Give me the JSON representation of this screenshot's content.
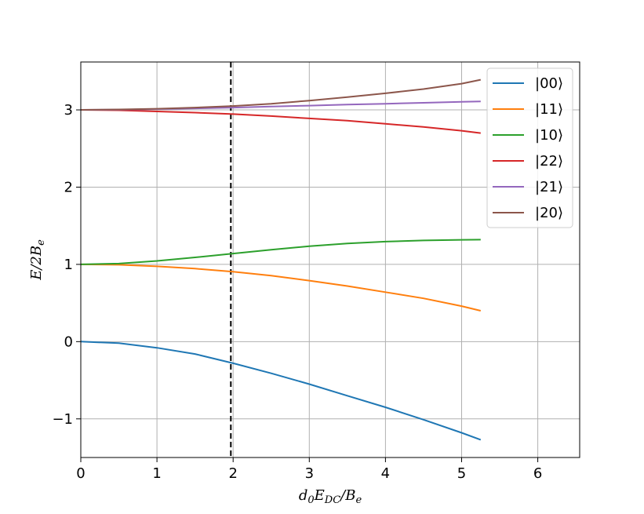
{
  "chart_data": {
    "type": "line",
    "xlabel": "d0EDC/Be",
    "ylabel": "E/2Be",
    "xlim": [
      0,
      6.55
    ],
    "ylim": [
      -1.5,
      3.62
    ],
    "xticks": [
      0,
      1,
      2,
      3,
      4,
      5,
      6
    ],
    "yticks": [
      -1,
      0,
      1,
      2,
      3
    ],
    "xtick_labels": [
      "0",
      "1",
      "2",
      "3",
      "4",
      "5",
      "6"
    ],
    "ytick_labels": [
      "−1",
      "0",
      "1",
      "2",
      "3"
    ],
    "grid": true,
    "legend": "top-right",
    "vline": {
      "x": 1.97,
      "style": "dashed",
      "color": "#000000"
    },
    "x": [
      0,
      0.5,
      1,
      1.5,
      2,
      2.5,
      3,
      3.5,
      4,
      4.5,
      5,
      5.25
    ],
    "series": [
      {
        "name": "|00⟩",
        "color": "#1f77b4",
        "values": [
          0.0,
          -0.02,
          -0.08,
          -0.16,
          -0.28,
          -0.41,
          -0.55,
          -0.7,
          -0.85,
          -1.01,
          -1.18,
          -1.27
        ]
      },
      {
        "name": "|11⟩",
        "color": "#ff7f0e",
        "values": [
          1.0,
          0.995,
          0.975,
          0.945,
          0.905,
          0.855,
          0.79,
          0.72,
          0.64,
          0.56,
          0.46,
          0.4
        ]
      },
      {
        "name": "|10⟩",
        "color": "#2ca02c",
        "values": [
          1.0,
          1.01,
          1.045,
          1.09,
          1.14,
          1.19,
          1.235,
          1.27,
          1.295,
          1.31,
          1.318,
          1.32
        ]
      },
      {
        "name": "|22⟩",
        "color": "#d62728",
        "values": [
          3.0,
          2.995,
          2.98,
          2.965,
          2.945,
          2.92,
          2.89,
          2.86,
          2.82,
          2.78,
          2.73,
          2.7
        ]
      },
      {
        "name": "|21⟩",
        "color": "#9467bd",
        "values": [
          3.0,
          3.003,
          3.01,
          3.02,
          3.03,
          3.043,
          3.055,
          3.068,
          3.08,
          3.092,
          3.105,
          3.11
        ]
      },
      {
        "name": "|20⟩",
        "color": "#8c564b",
        "values": [
          3.0,
          3.005,
          3.015,
          3.03,
          3.05,
          3.08,
          3.12,
          3.165,
          3.215,
          3.27,
          3.34,
          3.39
        ]
      }
    ]
  }
}
